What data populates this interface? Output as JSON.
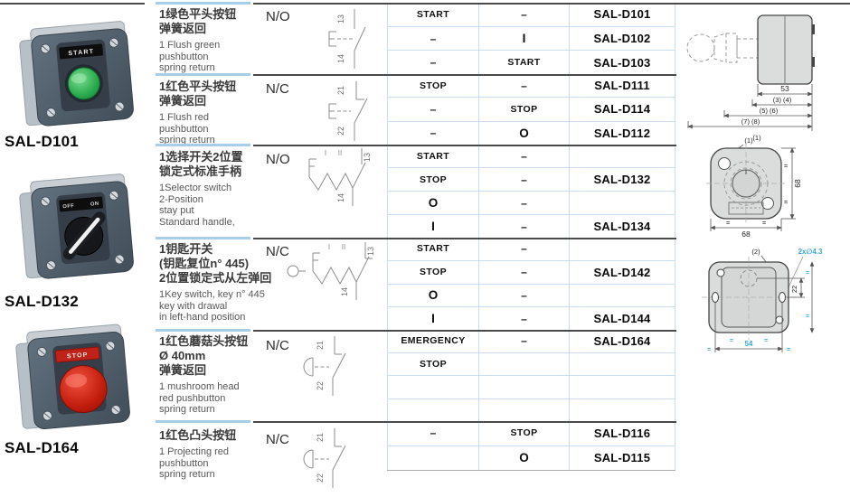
{
  "products": [
    {
      "model": "SAL-D101",
      "button_label": "START"
    },
    {
      "model": "SAL-D132",
      "legend_left": "OFF",
      "legend_right": "ON"
    },
    {
      "model": "SAL-D164",
      "button_label": "STOP"
    }
  ],
  "sections": [
    {
      "description_zh": [
        "1绿色平头按钮",
        "弹簧返回"
      ],
      "description_en": [
        "1 Flush green",
        "pushbutton",
        "spring return"
      ],
      "contact_type": "N/O",
      "diagram": {
        "terminals": [
          "13",
          "14"
        ]
      },
      "rows": [
        {
          "marking_1": "START",
          "marking_2": "–",
          "model": "SAL-D101"
        },
        {
          "marking_1": "–",
          "marking_2": "I",
          "model": "SAL-D102"
        },
        {
          "marking_1": "–",
          "marking_2": "START",
          "model": "SAL-D103"
        }
      ]
    },
    {
      "description_zh": [
        "1红色平头按钮",
        "弹簧返回"
      ],
      "description_en": [
        "1 Flush red",
        "pushbutton",
        "spring return"
      ],
      "contact_type": "N/C",
      "diagram": {
        "terminals": [
          "21",
          "22"
        ]
      },
      "rows": [
        {
          "marking_1": "STOP",
          "marking_2": "–",
          "model": "SAL-D111"
        },
        {
          "marking_1": "–",
          "marking_2": "STOP",
          "model": "SAL-D114"
        },
        {
          "marking_1": "–",
          "marking_2": "O",
          "model": "SAL-D112"
        }
      ]
    },
    {
      "description_zh": [
        "1选择开关2位置",
        "锁定式标准手柄"
      ],
      "description_en": [
        "1Selector switch",
        "2-Position",
        "stay put",
        "Standard handle,"
      ],
      "contact_type": "N/O",
      "diagram": {
        "positions": [
          "I",
          "II"
        ],
        "terminals": [
          "13",
          "14"
        ]
      },
      "rows": [
        {
          "marking_1": "START",
          "marking_2": "–",
          "model": ""
        },
        {
          "marking_1": "STOP",
          "marking_2": "–",
          "model": "SAL-D132"
        },
        {
          "marking_1": "O",
          "marking_2": "–",
          "model": ""
        },
        {
          "marking_1": "I",
          "marking_2": "–",
          "model": "SAL-D134"
        }
      ]
    },
    {
      "description_zh": [
        "1钥匙开关",
        "(钥匙复位n° 445)",
        "2位置锁定式从左弹回"
      ],
      "description_en": [
        "1Key switch, key n° 445",
        "key with drawal",
        "in left-hand position"
      ],
      "contact_type": "N/C",
      "diagram": {
        "positions": [
          "I",
          "II"
        ],
        "terminals": [
          "13",
          "14"
        ]
      },
      "rows": [
        {
          "marking_1": "START",
          "marking_2": "–",
          "model": ""
        },
        {
          "marking_1": "STOP",
          "marking_2": "–",
          "model": "SAL-D142"
        },
        {
          "marking_1": "O",
          "marking_2": "–",
          "model": ""
        },
        {
          "marking_1": "I",
          "marking_2": "–",
          "model": "SAL-D144"
        }
      ]
    },
    {
      "description_zh": [
        "1红色蘑菇头按钮",
        "Ø 40mm",
        "弹簧返回"
      ],
      "description_en": [
        "1 mushroom head",
        "red pushbutton",
        "spring return"
      ],
      "contact_type": "N/C",
      "diagram": {
        "terminals": [
          "21",
          "22"
        ]
      },
      "rows": [
        {
          "marking_1": "EMERGENCY",
          "marking_2": "–",
          "model": "SAL-D164"
        },
        {
          "marking_1": "STOP",
          "marking_2": "",
          "model": ""
        },
        {
          "marking_1": "",
          "marking_2": "",
          "model": ""
        },
        {
          "marking_1": "",
          "marking_2": "",
          "model": ""
        }
      ]
    },
    {
      "description_zh": [
        "1红色凸头按钮"
      ],
      "description_en": [
        "1 Projecting red",
        "pushbutton",
        "spring return"
      ],
      "contact_type": "N/C",
      "diagram": {
        "terminals": [
          "21",
          "22"
        ]
      },
      "rows": [
        {
          "marking_1": "–",
          "marking_2": "STOP",
          "model": "SAL-D116"
        },
        {
          "marking_1": "",
          "marking_2": "O",
          "model": "SAL-D115"
        }
      ]
    }
  ],
  "drawings": {
    "side_view": {
      "dim_width": "53",
      "dim_refs_a": "(3) (4)",
      "dim_refs_b": "(5) (6)",
      "dim_refs_c": "(7) (8)",
      "callout": "(1)"
    },
    "front_view": {
      "callout": "(1)",
      "dim_width": "68",
      "dim_height": "68",
      "equal_mark": "="
    },
    "back_view": {
      "callout": "(2)",
      "hole_note": "2x∅4.3",
      "dim_vertical": "22",
      "dim_horizontal": "54",
      "equal_mark": "="
    }
  },
  "colors": {
    "accent_blue": "#3aa7dd",
    "separator_blue": "#a8cde8",
    "separator_dark": "#4a4a4a",
    "button_green": "#2eae50",
    "button_red": "#c8281a"
  }
}
